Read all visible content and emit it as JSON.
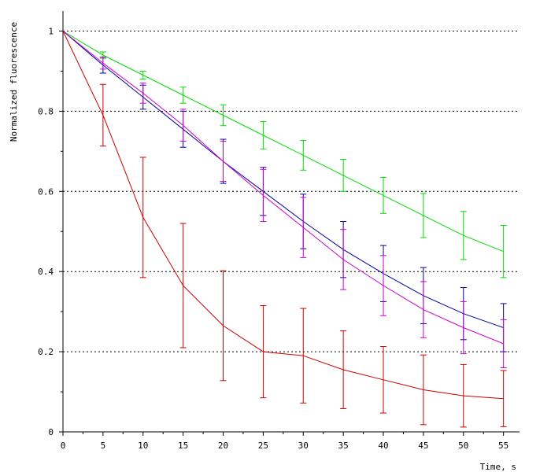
{
  "chart_data": {
    "type": "line",
    "xlabel": "Time, s",
    "ylabel": "Normalized fluorescence",
    "xlim": [
      0,
      57
    ],
    "ylim": [
      0,
      1.05
    ],
    "x_ticks": [
      0,
      5,
      10,
      15,
      20,
      25,
      30,
      35,
      40,
      45,
      50,
      55
    ],
    "y_ticks": [
      0,
      0.2,
      0.4,
      0.6,
      0.8,
      1
    ],
    "y_tick_labels": [
      "0",
      "0.2",
      "0.4",
      "0.6",
      "0.8",
      "1"
    ],
    "grid": "horizontal dotted",
    "x": [
      0,
      5,
      10,
      15,
      20,
      25,
      30,
      35,
      40,
      45,
      50,
      55
    ],
    "series": [
      {
        "color": "#00dd00",
        "values": [
          1.0,
          0.94,
          0.89,
          0.84,
          0.79,
          0.74,
          0.69,
          0.64,
          0.59,
          0.54,
          0.49,
          0.45
        ],
        "errors": [
          0.0,
          0.008,
          0.01,
          0.02,
          0.026,
          0.034,
          0.037,
          0.04,
          0.045,
          0.055,
          0.06,
          0.065
        ]
      },
      {
        "color": "#000099",
        "values": [
          1.0,
          0.915,
          0.835,
          0.755,
          0.675,
          0.6,
          0.525,
          0.455,
          0.395,
          0.34,
          0.295,
          0.26
        ],
        "errors": [
          0.0,
          0.02,
          0.03,
          0.045,
          0.055,
          0.06,
          0.068,
          0.07,
          0.07,
          0.07,
          0.065,
          0.06
        ]
      },
      {
        "color": "#cc00cc",
        "values": [
          1.0,
          0.92,
          0.845,
          0.765,
          0.675,
          0.59,
          0.51,
          0.43,
          0.365,
          0.305,
          0.26,
          0.22
        ],
        "errors": [
          0.0,
          0.015,
          0.025,
          0.04,
          0.05,
          0.065,
          0.075,
          0.075,
          0.075,
          0.07,
          0.065,
          0.06
        ]
      },
      {
        "color": "#cc0000",
        "values": [
          1.0,
          0.79,
          0.535,
          0.365,
          0.265,
          0.2,
          0.19,
          0.155,
          0.13,
          0.105,
          0.09,
          0.083
        ],
        "errors": [
          0.0,
          0.077,
          0.15,
          0.155,
          0.137,
          0.115,
          0.118,
          0.097,
          0.083,
          0.087,
          0.078,
          0.07
        ]
      }
    ]
  }
}
